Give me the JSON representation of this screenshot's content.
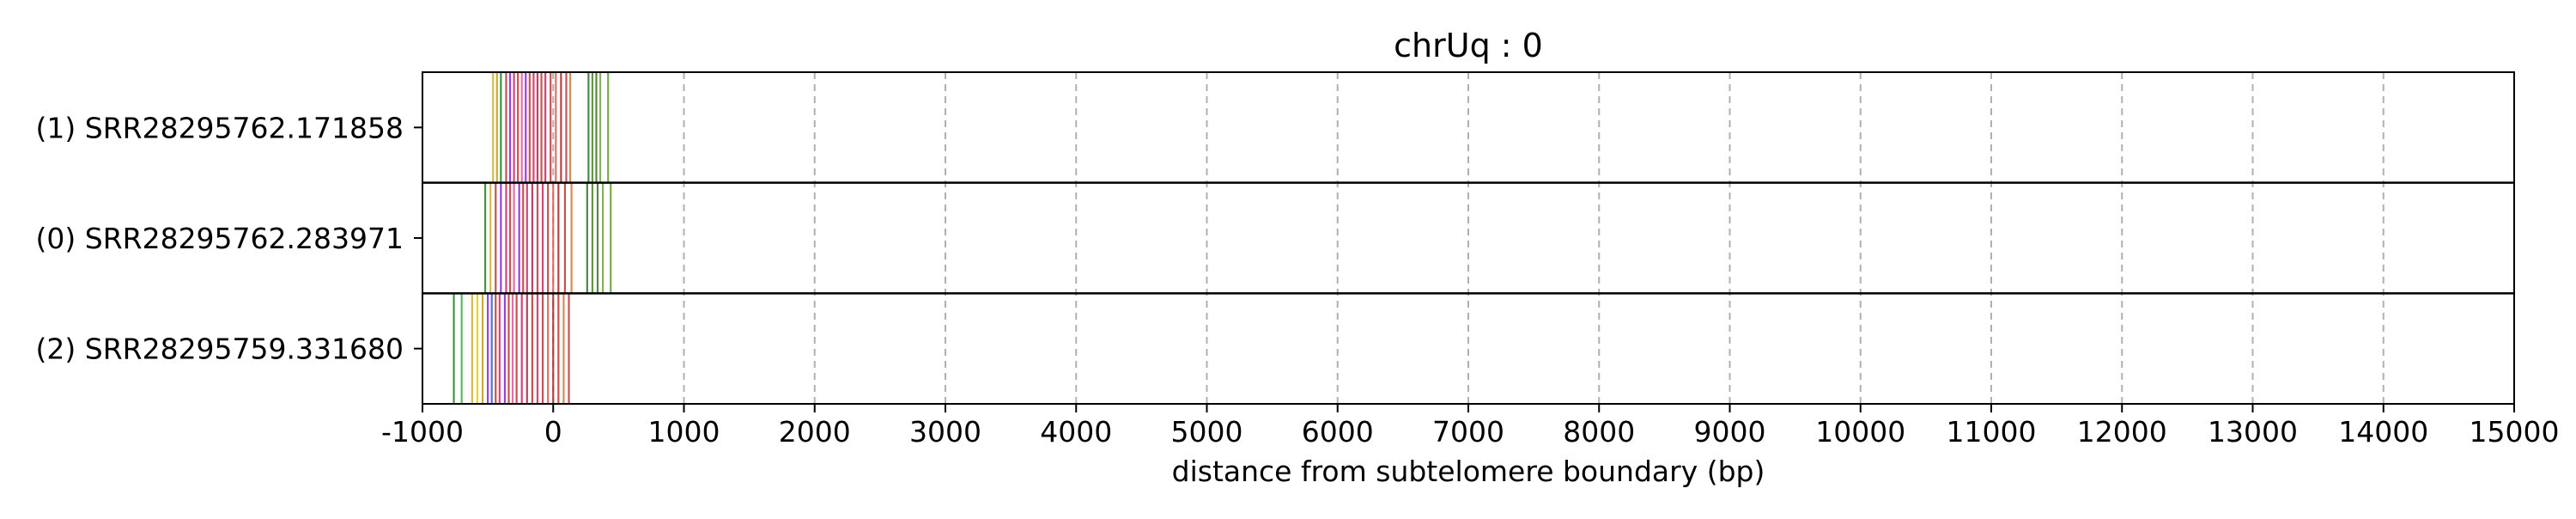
{
  "chart_data": {
    "type": "track",
    "title": "chrUq : 0",
    "xlabel": "distance from subtelomere boundary (bp)",
    "ylabel": "",
    "xlim": [
      -1000,
      15000
    ],
    "x_ticks": [
      "-1000",
      "0",
      "1000",
      "2000",
      "3000",
      "4000",
      "5000",
      "6000",
      "7000",
      "8000",
      "9000",
      "10000",
      "11000",
      "12000",
      "13000",
      "14000",
      "15000"
    ],
    "grid": "vertical dashed gridlines at x ticks",
    "legend": "none",
    "rows": [
      {
        "label": "(1) SRR28295762.171858",
        "marks": [
          {
            "x": -460,
            "color": "#d4b040"
          },
          {
            "x": -430,
            "color": "#c8a020"
          },
          {
            "x": -400,
            "color": "#2e8b2e"
          },
          {
            "x": -360,
            "color": "#c04040"
          },
          {
            "x": -330,
            "color": "#8a2be2"
          },
          {
            "x": -300,
            "color": "#d0306a"
          },
          {
            "x": -270,
            "color": "#c04040"
          },
          {
            "x": -240,
            "color": "#e060a0"
          },
          {
            "x": -210,
            "color": "#8a2be2"
          },
          {
            "x": -180,
            "color": "#c04040"
          },
          {
            "x": -150,
            "color": "#d0306a"
          },
          {
            "x": -120,
            "color": "#b03050"
          },
          {
            "x": -90,
            "color": "#c04040"
          },
          {
            "x": -60,
            "color": "#d0306a"
          },
          {
            "x": -20,
            "color": "#c04040"
          },
          {
            "x": 20,
            "color": "#e06060"
          },
          {
            "x": 60,
            "color": "#b03030"
          },
          {
            "x": 100,
            "color": "#c04040"
          },
          {
            "x": 130,
            "color": "#d08040"
          },
          {
            "x": 270,
            "color": "#2e7d32"
          },
          {
            "x": 300,
            "color": "#558b2f"
          },
          {
            "x": 330,
            "color": "#4a7a28"
          },
          {
            "x": 360,
            "color": "#7ba84a"
          },
          {
            "x": 420,
            "color": "#6b9e3c"
          }
        ]
      },
      {
        "label": "(0) SRR28295762.283971",
        "marks": [
          {
            "x": -520,
            "color": "#2e8b2e"
          },
          {
            "x": -480,
            "color": "#d4b040"
          },
          {
            "x": -440,
            "color": "#c04040"
          },
          {
            "x": -400,
            "color": "#8a2be2"
          },
          {
            "x": -360,
            "color": "#d0306a"
          },
          {
            "x": -330,
            "color": "#c04040"
          },
          {
            "x": -300,
            "color": "#e060a0"
          },
          {
            "x": -260,
            "color": "#8a2be2"
          },
          {
            "x": -230,
            "color": "#c04040"
          },
          {
            "x": -200,
            "color": "#d0306a"
          },
          {
            "x": -160,
            "color": "#b03050"
          },
          {
            "x": -120,
            "color": "#c04040"
          },
          {
            "x": -80,
            "color": "#d0306a"
          },
          {
            "x": -40,
            "color": "#c04040"
          },
          {
            "x": 0,
            "color": "#e06060"
          },
          {
            "x": 40,
            "color": "#b03030"
          },
          {
            "x": 90,
            "color": "#c04040"
          },
          {
            "x": 140,
            "color": "#d08040"
          },
          {
            "x": 260,
            "color": "#2e7d32"
          },
          {
            "x": 300,
            "color": "#558b2f"
          },
          {
            "x": 340,
            "color": "#4a7a28"
          },
          {
            "x": 380,
            "color": "#7ba84a"
          },
          {
            "x": 440,
            "color": "#6b9e3c"
          }
        ]
      },
      {
        "label": "(2) SRR28295759.331680",
        "marks": [
          {
            "x": -760,
            "color": "#2e8b2e"
          },
          {
            "x": -700,
            "color": "#4caf50"
          },
          {
            "x": -620,
            "color": "#d4b040"
          },
          {
            "x": -580,
            "color": "#e6d200"
          },
          {
            "x": -540,
            "color": "#c8a020"
          },
          {
            "x": -500,
            "color": "#8a2be2"
          },
          {
            "x": -470,
            "color": "#4060c0"
          },
          {
            "x": -440,
            "color": "#c04040"
          },
          {
            "x": -410,
            "color": "#d0306a"
          },
          {
            "x": -370,
            "color": "#8a2be2"
          },
          {
            "x": -340,
            "color": "#c04040"
          },
          {
            "x": -310,
            "color": "#e060a0"
          },
          {
            "x": -280,
            "color": "#c04040"
          },
          {
            "x": -240,
            "color": "#d0306a"
          },
          {
            "x": -200,
            "color": "#b03050"
          },
          {
            "x": -160,
            "color": "#c04040"
          },
          {
            "x": -120,
            "color": "#d0306a"
          },
          {
            "x": -80,
            "color": "#c04040"
          },
          {
            "x": -40,
            "color": "#e06060"
          },
          {
            "x": 0,
            "color": "#b03030"
          },
          {
            "x": 40,
            "color": "#c04040"
          },
          {
            "x": 80,
            "color": "#d08040"
          },
          {
            "x": 120,
            "color": "#c04040"
          }
        ]
      }
    ]
  }
}
